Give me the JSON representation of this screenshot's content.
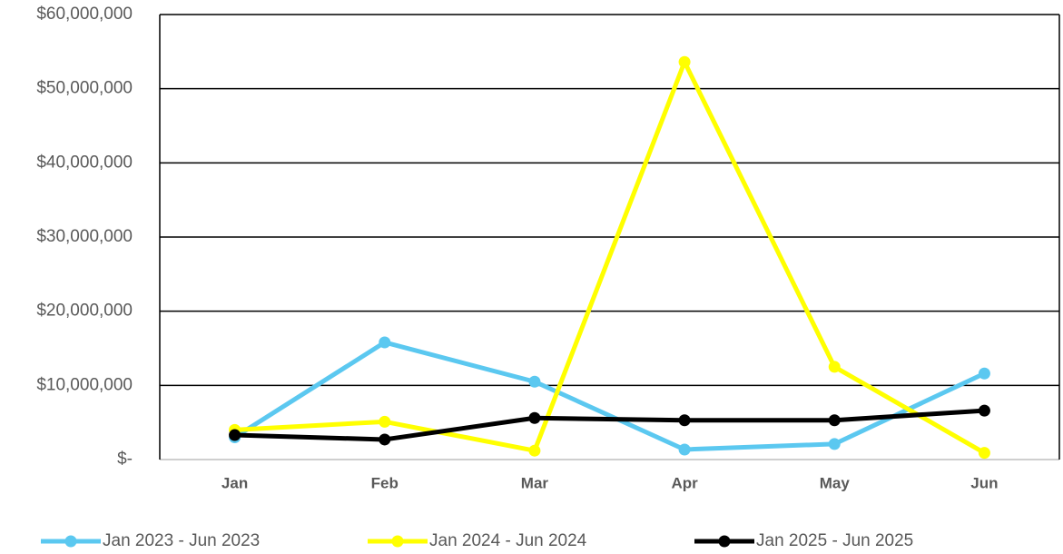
{
  "chart_data": {
    "type": "line",
    "categories": [
      "Jan",
      "Feb",
      "Mar",
      "Apr",
      "May",
      "Jun"
    ],
    "series": [
      {
        "name": "Jan 2023 - Jun 2023",
        "color": "#5bc8f0",
        "values": [
          3000000,
          15800000,
          10500000,
          1350000,
          2100000,
          11600000
        ]
      },
      {
        "name": "Jan 2024 - Jun 2024",
        "color": "#ffff00",
        "values": [
          4000000,
          5100000,
          1200000,
          53600000,
          12500000,
          900000
        ]
      },
      {
        "name": "Jan 2025 - Jun 2025",
        "color": "#000000",
        "values": [
          3300000,
          2700000,
          5600000,
          5300000,
          5300000,
          6600000
        ]
      }
    ],
    "ylim": [
      0,
      60000000
    ],
    "yticks": [
      {
        "value": 0,
        "label": "$-"
      },
      {
        "value": 10000000,
        "label": "$10,000,000"
      },
      {
        "value": 20000000,
        "label": "$20,000,000"
      },
      {
        "value": 30000000,
        "label": "$30,000,000"
      },
      {
        "value": 40000000,
        "label": "$40,000,000"
      },
      {
        "value": 50000000,
        "label": "$50,000,000"
      },
      {
        "value": 60000000,
        "label": "$60,000,000"
      }
    ],
    "grid": true,
    "legend": "bottom"
  }
}
